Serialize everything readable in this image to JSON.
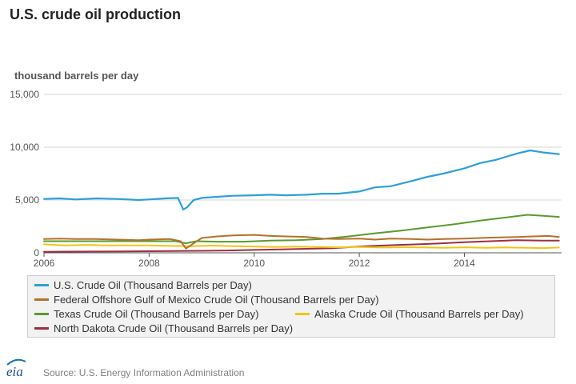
{
  "colors": {
    "us": "#2ca0d9",
    "gom": "#b5712a",
    "texas": "#5b9a2d",
    "alaska": "#f2c418",
    "nd": "#9e2f3f",
    "grid": "#d4d4d4",
    "axis": "#555555"
  },
  "header": {
    "title": "U.S. crude oil production"
  },
  "footer": {
    "source": "Source: U.S. Energy Information Administration",
    "logo_text": "eia"
  },
  "chart_data": {
    "type": "line",
    "title": "U.S. crude oil production",
    "ylabel": "thousand barrels per day",
    "xlabel": "",
    "xlim": [
      2006,
      2015.85
    ],
    "ylim": [
      0,
      15000
    ],
    "x_ticks": [
      2006,
      2008,
      2010,
      2012,
      2014
    ],
    "x_tick_labels": [
      "2006",
      "2008",
      "2010",
      "2012",
      "2014"
    ],
    "y_ticks": [
      0,
      5000,
      10000,
      15000
    ],
    "y_tick_labels": [
      "0",
      "5,000",
      "10,000",
      "15,000"
    ],
    "grid": true,
    "legend_position": "bottom",
    "series": [
      {
        "key": "us",
        "name": "U.S. Crude Oil (Thousand Barrels per Day)",
        "x": [
          2006.0,
          2006.3,
          2006.6,
          2007.0,
          2007.4,
          2007.8,
          2008.0,
          2008.3,
          2008.55,
          2008.65,
          2008.72,
          2008.85,
          2009.0,
          2009.3,
          2009.6,
          2010.0,
          2010.3,
          2010.6,
          2011.0,
          2011.3,
          2011.6,
          2012.0,
          2012.3,
          2012.6,
          2013.0,
          2013.3,
          2013.6,
          2014.0,
          2014.3,
          2014.6,
          2015.0,
          2015.25,
          2015.5,
          2015.8
        ],
        "values": [
          5100,
          5150,
          5050,
          5150,
          5100,
          5000,
          5050,
          5150,
          5200,
          4100,
          4300,
          5000,
          5200,
          5300,
          5400,
          5450,
          5500,
          5450,
          5500,
          5600,
          5600,
          5800,
          6200,
          6300,
          6800,
          7200,
          7500,
          8000,
          8500,
          8800,
          9400,
          9700,
          9500,
          9350
        ]
      },
      {
        "key": "gom",
        "name": "Federal Offshore Gulf of Mexico Crude Oil (Thousand Barrels per Day)",
        "x": [
          2006.0,
          2006.3,
          2006.6,
          2007.0,
          2007.4,
          2007.8,
          2008.0,
          2008.4,
          2008.6,
          2008.7,
          2008.85,
          2009.0,
          2009.3,
          2009.6,
          2010.0,
          2010.3,
          2010.6,
          2011.0,
          2011.3,
          2011.6,
          2012.0,
          2012.3,
          2012.6,
          2013.0,
          2013.3,
          2013.6,
          2014.0,
          2014.3,
          2014.6,
          2015.0,
          2015.3,
          2015.6,
          2015.8
        ],
        "values": [
          1300,
          1350,
          1300,
          1300,
          1250,
          1200,
          1250,
          1300,
          1100,
          400,
          900,
          1400,
          1550,
          1650,
          1700,
          1600,
          1550,
          1500,
          1350,
          1300,
          1350,
          1250,
          1350,
          1300,
          1250,
          1300,
          1350,
          1400,
          1450,
          1500,
          1550,
          1600,
          1500
        ]
      },
      {
        "key": "texas",
        "name": "Texas Crude Oil (Thousand Barrels per Day)",
        "x": [
          2006.0,
          2006.5,
          2007.0,
          2007.5,
          2008.0,
          2008.5,
          2008.7,
          2008.9,
          2009.3,
          2009.8,
          2010.3,
          2010.8,
          2011.3,
          2011.8,
          2012.3,
          2012.8,
          2013.3,
          2013.8,
          2014.3,
          2014.8,
          2015.2,
          2015.5,
          2015.8
        ],
        "values": [
          1100,
          1100,
          1100,
          1100,
          1100,
          1100,
          900,
          1100,
          1050,
          1050,
          1150,
          1200,
          1300,
          1550,
          1850,
          2100,
          2400,
          2700,
          3050,
          3350,
          3600,
          3500,
          3400
        ]
      },
      {
        "key": "alaska",
        "name": "Alaska Crude Oil (Thousand Barrels per Day)",
        "x": [
          2006.0,
          2006.4,
          2006.8,
          2007.2,
          2007.6,
          2008.0,
          2008.4,
          2008.8,
          2009.2,
          2009.6,
          2010.0,
          2010.4,
          2010.8,
          2011.2,
          2011.6,
          2012.0,
          2012.4,
          2012.8,
          2013.2,
          2013.6,
          2014.0,
          2014.4,
          2014.8,
          2015.2,
          2015.5,
          2015.8
        ],
        "values": [
          800,
          700,
          750,
          700,
          700,
          700,
          650,
          620,
          680,
          620,
          600,
          550,
          580,
          560,
          520,
          560,
          500,
          520,
          510,
          480,
          520,
          470,
          510,
          480,
          450,
          500
        ]
      },
      {
        "key": "nd",
        "name": "North Dakota Crude Oil (Thousand Barrels per Day)",
        "x": [
          2006.0,
          2006.5,
          2007.0,
          2007.5,
          2008.0,
          2008.5,
          2009.0,
          2009.5,
          2010.0,
          2010.5,
          2011.0,
          2011.5,
          2012.0,
          2012.5,
          2013.0,
          2013.5,
          2014.0,
          2014.5,
          2015.0,
          2015.5,
          2015.8
        ],
        "values": [
          100,
          110,
          120,
          130,
          150,
          170,
          190,
          220,
          270,
          320,
          380,
          430,
          600,
          700,
          790,
          880,
          1000,
          1100,
          1200,
          1150,
          1150
        ]
      }
    ]
  },
  "legend": {
    "rows": [
      [
        {
          "key": "us",
          "label": "U.S. Crude Oil (Thousand Barrels per Day)"
        }
      ],
      [
        {
          "key": "gom",
          "label": "Federal Offshore Gulf of Mexico Crude Oil (Thousand Barrels per Day)"
        }
      ],
      [
        {
          "key": "texas",
          "label": "Texas Crude Oil (Thousand Barrels per Day)"
        },
        {
          "key": "alaska",
          "label": "Alaska Crude Oil (Thousand Barrels per Day)"
        }
      ],
      [
        {
          "key": "nd",
          "label": "North Dakota Crude Oil (Thousand Barrels per Day)"
        }
      ]
    ]
  }
}
